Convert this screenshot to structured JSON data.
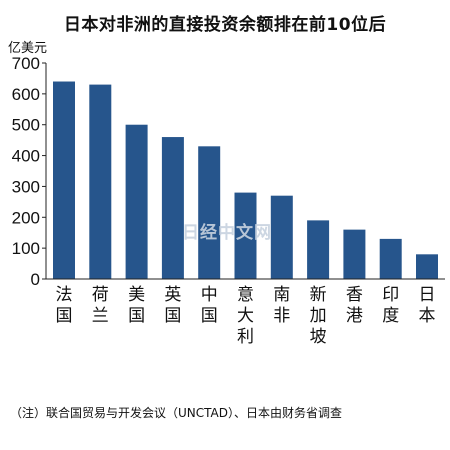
{
  "chart_data": {
    "type": "bar",
    "title": "日本对非洲的直接投资余额排在前10位后",
    "ylabel": "亿美元",
    "ylim": [
      0,
      700
    ],
    "yticks": [
      0,
      100,
      200,
      300,
      400,
      500,
      600,
      700
    ],
    "grid": false,
    "categories": [
      "法国",
      "荷兰",
      "美国",
      "英国",
      "中国",
      "意大利",
      "南非",
      "新加坡",
      "香港",
      "印度",
      "日本"
    ],
    "values": [
      640,
      630,
      500,
      460,
      430,
      280,
      270,
      190,
      160,
      130,
      80
    ],
    "bar_color": "#26558c",
    "note": "（注）联合国贸易与开发会议（UNCTAD）、日本由财务省调查"
  },
  "watermark": "日经中文网"
}
